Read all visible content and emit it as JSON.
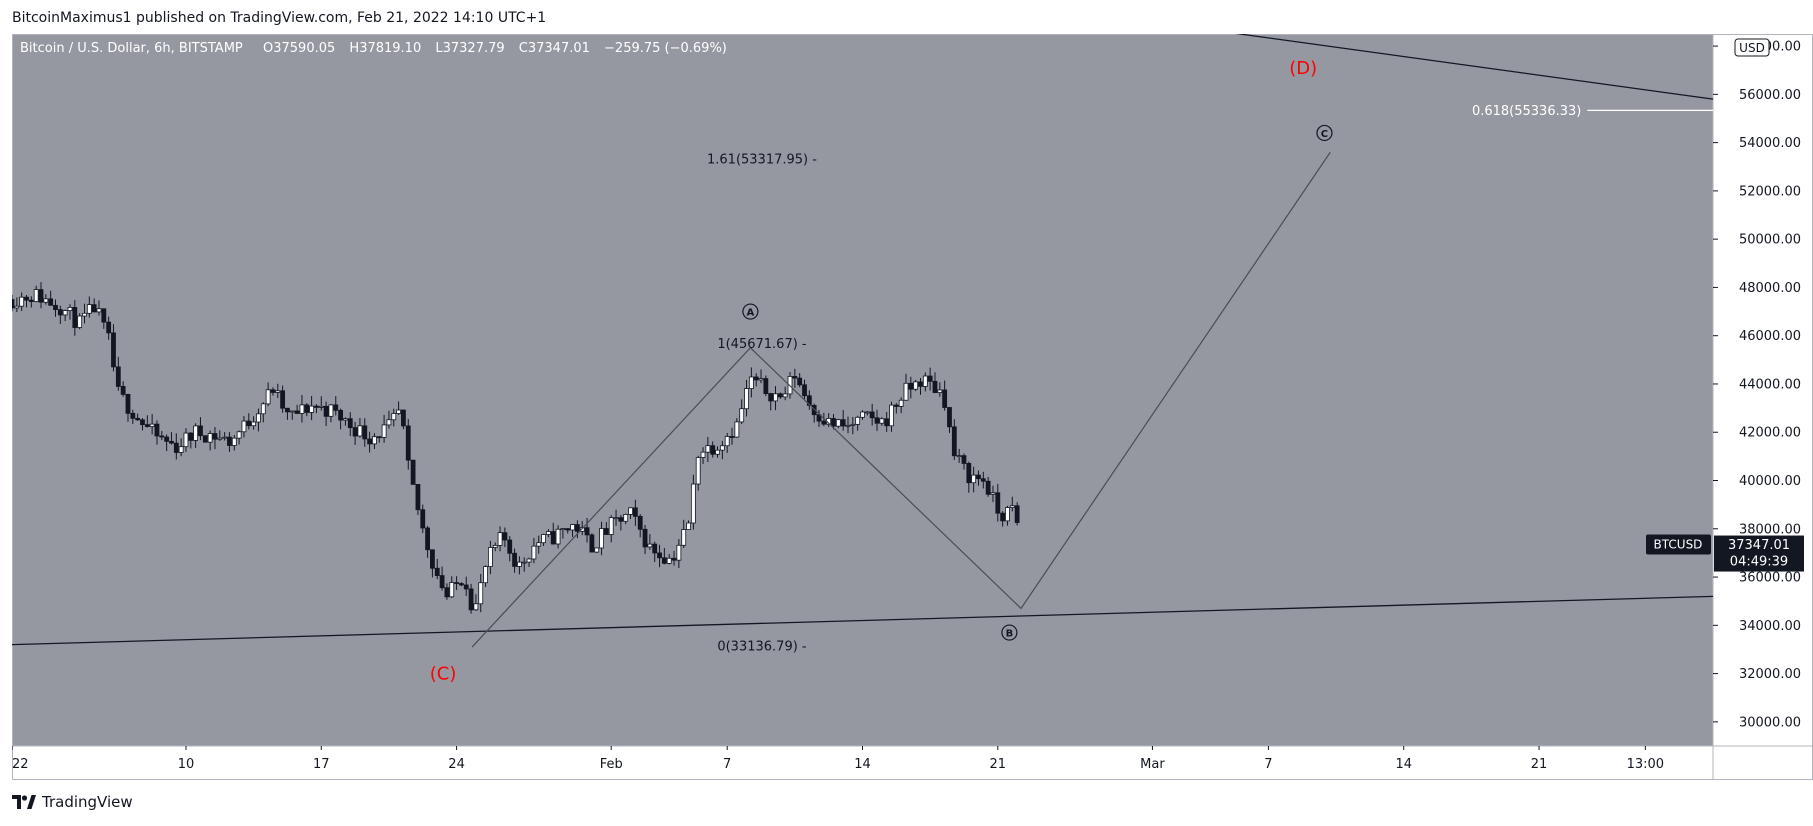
{
  "header": {
    "publisher": "BitcoinMaximus1 published on TradingView.com, Feb 21, 2022 14:10 UTC+1"
  },
  "footer": {
    "brand": "TradingView"
  },
  "colors": {
    "background": "#9598a1",
    "candle_up": "#ffffff",
    "candle_down": "#131722",
    "wave_label": "#ff0000",
    "axis": "#131722"
  },
  "chart_data": {
    "type": "candlestick",
    "legend": {
      "symbol": "Bitcoin / U.S. Dollar, 6h, BITSTAMP",
      "o_label": "O",
      "open": "37590.05",
      "h_label": "H",
      "high": "37819.10",
      "l_label": "L",
      "low": "37327.79",
      "c_label": "C",
      "close": "37347.01",
      "change": "−259.75 (−0.69%)"
    },
    "currency_badge": "USD",
    "ylim": [
      29000,
      58500
    ],
    "y_ticks": [
      30000,
      32000,
      34000,
      36000,
      38000,
      40000,
      42000,
      44000,
      46000,
      48000,
      50000,
      52000,
      54000,
      56000,
      58000
    ],
    "y_tick_labels": [
      "30000.00",
      "32000.00",
      "34000.00",
      "36000.00",
      "38000.00",
      "40000.00",
      "42000.00",
      "44000.00",
      "46000.00",
      "48000.00",
      "50000.00",
      "52000.00",
      "54000.00",
      "56000.00",
      "58000.00"
    ],
    "x_ticks": [
      {
        "label": "22",
        "day": 0
      },
      {
        "label": "10",
        "day": 9
      },
      {
        "label": "17",
        "day": 16
      },
      {
        "label": "24",
        "day": 23
      },
      {
        "label": "Feb",
        "day": 31
      },
      {
        "label": "7",
        "day": 37
      },
      {
        "label": "14",
        "day": 44
      },
      {
        "label": "21",
        "day": 51
      },
      {
        "label": "Mar",
        "day": 59
      },
      {
        "label": "7",
        "day": 65
      },
      {
        "label": "14",
        "day": 72
      },
      {
        "label": "21",
        "day": 79
      },
      {
        "label": "13:00",
        "day": 84.5
      }
    ],
    "x_range_days": [
      0,
      88
    ],
    "last_price": {
      "symbol": "BTCUSD",
      "price": "37347.01",
      "countdown": "04:49:39",
      "value": 37347
    },
    "price_path": [
      {
        "day": 0,
        "price": 47500
      },
      {
        "day": 1.2,
        "price": 47700
      },
      {
        "day": 2.5,
        "price": 47200
      },
      {
        "day": 3.5,
        "price": 46500
      },
      {
        "day": 4.3,
        "price": 47200
      },
      {
        "day": 5,
        "price": 45800
      },
      {
        "day": 5.5,
        "price": 43600
      },
      {
        "day": 6.5,
        "price": 42600
      },
      {
        "day": 7.5,
        "price": 41800
      },
      {
        "day": 8.5,
        "price": 41400
      },
      {
        "day": 9.5,
        "price": 42000
      },
      {
        "day": 10.3,
        "price": 41900
      },
      {
        "day": 11.3,
        "price": 41600
      },
      {
        "day": 12.5,
        "price": 42700
      },
      {
        "day": 13.5,
        "price": 43800
      },
      {
        "day": 14.3,
        "price": 42600
      },
      {
        "day": 15.5,
        "price": 43100
      },
      {
        "day": 16.5,
        "price": 42900
      },
      {
        "day": 17.5,
        "price": 42300
      },
      {
        "day": 18.5,
        "price": 41800
      },
      {
        "day": 19.5,
        "price": 42200
      },
      {
        "day": 20.1,
        "price": 42900
      },
      {
        "day": 20.5,
        "price": 40500
      },
      {
        "day": 21.2,
        "price": 38100
      },
      {
        "day": 21.8,
        "price": 36500
      },
      {
        "day": 22.5,
        "price": 35200
      },
      {
        "day": 23.4,
        "price": 36100
      },
      {
        "day": 23.9,
        "price": 34500
      },
      {
        "day": 24.6,
        "price": 36700
      },
      {
        "day": 25.4,
        "price": 37700
      },
      {
        "day": 26.2,
        "price": 36400
      },
      {
        "day": 27.1,
        "price": 37400
      },
      {
        "day": 28.1,
        "price": 37700
      },
      {
        "day": 29.1,
        "price": 38200
      },
      {
        "day": 30,
        "price": 37300
      },
      {
        "day": 31.1,
        "price": 38200
      },
      {
        "day": 32,
        "price": 38600
      },
      {
        "day": 33,
        "price": 37200
      },
      {
        "day": 34.1,
        "price": 36700
      },
      {
        "day": 35,
        "price": 38200
      },
      {
        "day": 35.5,
        "price": 41200
      },
      {
        "day": 36.5,
        "price": 41500
      },
      {
        "day": 37.5,
        "price": 42300
      },
      {
        "day": 38.2,
        "price": 44200
      },
      {
        "day": 39.1,
        "price": 43700
      },
      {
        "day": 39.8,
        "price": 43400
      },
      {
        "day": 40.5,
        "price": 44400
      },
      {
        "day": 41.3,
        "price": 43100
      },
      {
        "day": 42.2,
        "price": 42400
      },
      {
        "day": 43.2,
        "price": 42200
      },
      {
        "day": 44.1,
        "price": 42600
      },
      {
        "day": 45.1,
        "price": 42400
      },
      {
        "day": 46.1,
        "price": 43600
      },
      {
        "day": 47.1,
        "price": 44200
      },
      {
        "day": 48.2,
        "price": 43600
      },
      {
        "day": 48.7,
        "price": 41100
      },
      {
        "day": 49.5,
        "price": 40200
      },
      {
        "day": 50.3,
        "price": 40000
      },
      {
        "day": 51.1,
        "price": 38500
      },
      {
        "day": 51.8,
        "price": 38800
      },
      {
        "day": 52.2,
        "price": 37350
      }
    ],
    "annotations": {
      "fib_labels": [
        {
          "text": "1.61(53317.95)",
          "day": 38.8,
          "price": 53317.95
        },
        {
          "text": "1(45671.67)",
          "day": 38.8,
          "price": 45671.67
        },
        {
          "text": "0(33136.79)",
          "day": 38.8,
          "price": 33136.79
        }
      ],
      "fib_level_618": {
        "text": "0.618(55336.33)",
        "price": 55336.33,
        "day_start": 81.5
      },
      "wave_path": [
        {
          "day": 23.8,
          "price": 33100
        },
        {
          "day": 38.2,
          "price": 45500
        },
        {
          "day": 52.2,
          "price": 34700
        },
        {
          "day": 68.2,
          "price": 53600
        }
      ],
      "wave_labels": [
        {
          "text": "(C)",
          "day": 22.3,
          "price": 32000,
          "style": "red"
        },
        {
          "text": "(D)",
          "day": 66.8,
          "price": 57100,
          "style": "red"
        },
        {
          "text": "A",
          "day": 38.2,
          "price": 47000,
          "style": "circle"
        },
        {
          "text": "B",
          "day": 51.6,
          "price": 33700,
          "style": "circle"
        },
        {
          "text": "C",
          "day": 67.9,
          "price": 54400,
          "style": "circle"
        }
      ],
      "trendlines": [
        {
          "from": {
            "day": 0,
            "price": 33200
          },
          "to": {
            "day": 88,
            "price": 35200
          }
        },
        {
          "from": {
            "day": 59,
            "price": 59000
          },
          "to": {
            "day": 88,
            "price": 55800
          }
        }
      ]
    }
  }
}
